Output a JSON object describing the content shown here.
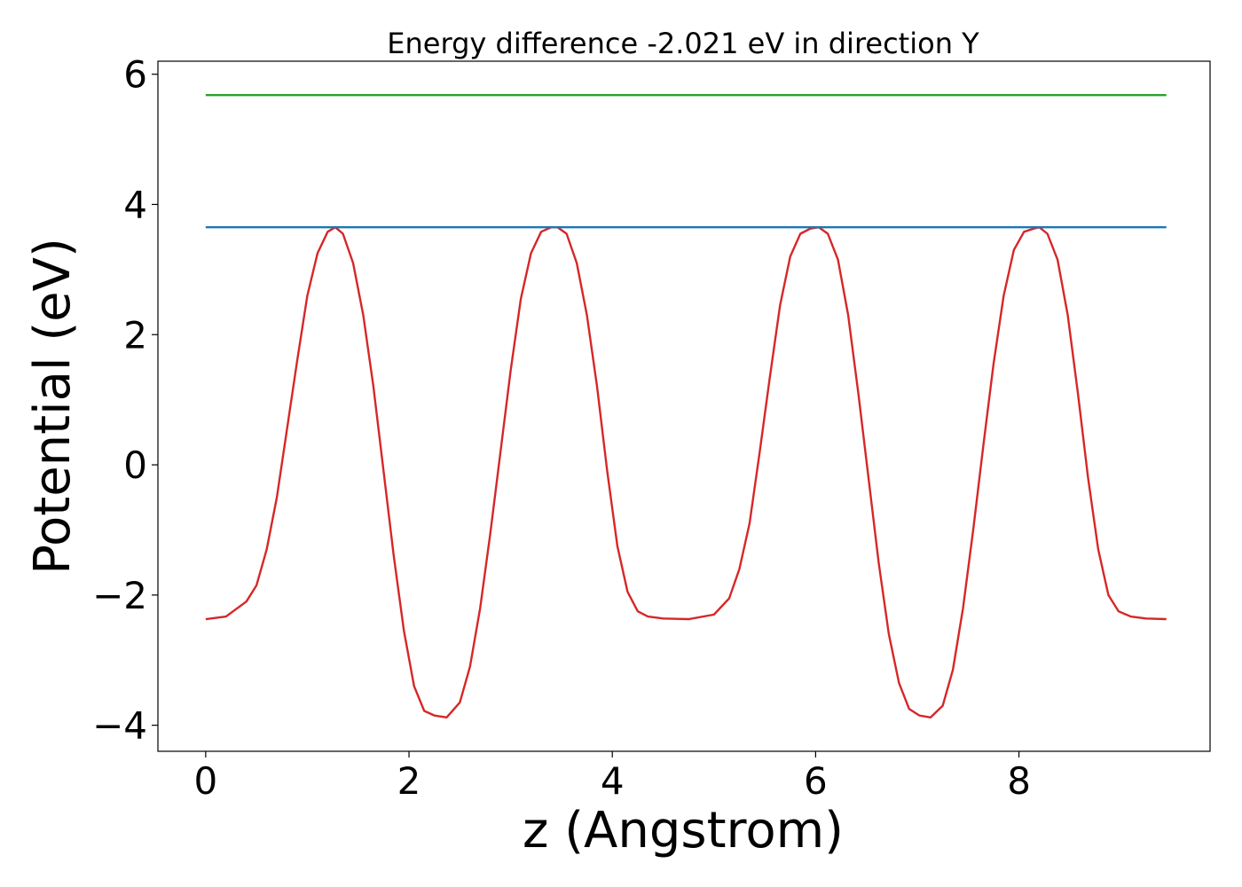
{
  "chart_data": {
    "type": "line",
    "title": "Energy difference -2.021 eV in direction Y",
    "xlabel": "z (Angstrom)",
    "ylabel": "Potential (eV)",
    "xlim": [
      -0.47,
      9.88
    ],
    "ylim": [
      -4.4,
      6.2
    ],
    "xticks": [
      0,
      2,
      4,
      6,
      8
    ],
    "yticks": [
      -4,
      -2,
      0,
      2,
      4,
      6
    ],
    "xtick_labels": [
      "0",
      "2",
      "4",
      "6",
      "8"
    ],
    "ytick_labels": [
      "−4",
      "−2",
      "0",
      "2",
      "4",
      "6"
    ],
    "grid": false,
    "series": [
      {
        "color": "#d62728",
        "x": [
          0.0,
          0.2,
          0.4,
          0.5,
          0.6,
          0.7,
          0.8,
          0.9,
          1.0,
          1.1,
          1.2,
          1.275,
          1.35,
          1.45,
          1.55,
          1.65,
          1.75,
          1.85,
          1.95,
          2.05,
          2.15,
          2.25,
          2.37,
          2.5,
          2.6,
          2.7,
          2.8,
          2.9,
          3.0,
          3.1,
          3.2,
          3.3,
          3.4,
          3.46,
          3.55,
          3.65,
          3.75,
          3.85,
          3.95,
          4.05,
          4.15,
          4.25,
          4.35,
          4.5,
          4.75,
          5.0,
          5.15,
          5.25,
          5.35,
          5.45,
          5.55,
          5.65,
          5.75,
          5.85,
          5.95,
          6.03,
          6.12,
          6.22,
          6.32,
          6.42,
          6.52,
          6.62,
          6.72,
          6.82,
          6.92,
          7.02,
          7.13,
          7.25,
          7.35,
          7.45,
          7.55,
          7.65,
          7.75,
          7.85,
          7.95,
          8.05,
          8.15,
          8.2,
          8.28,
          8.38,
          8.48,
          8.58,
          8.68,
          8.78,
          8.88,
          8.98,
          9.1,
          9.25,
          9.45
        ],
        "values": [
          -2.37,
          -2.33,
          -2.1,
          -1.85,
          -1.3,
          -0.5,
          0.55,
          1.6,
          2.6,
          3.25,
          3.58,
          3.65,
          3.55,
          3.1,
          2.3,
          1.2,
          -0.1,
          -1.4,
          -2.55,
          -3.4,
          -3.78,
          -3.85,
          -3.88,
          -3.65,
          -3.1,
          -2.2,
          -1.05,
          0.2,
          1.45,
          2.55,
          3.25,
          3.58,
          3.65,
          3.65,
          3.55,
          3.1,
          2.3,
          1.2,
          -0.1,
          -1.25,
          -1.95,
          -2.25,
          -2.33,
          -2.36,
          -2.37,
          -2.3,
          -2.05,
          -1.6,
          -0.9,
          0.2,
          1.35,
          2.45,
          3.2,
          3.55,
          3.63,
          3.65,
          3.55,
          3.15,
          2.3,
          1.1,
          -0.2,
          -1.5,
          -2.6,
          -3.35,
          -3.75,
          -3.85,
          -3.88,
          -3.7,
          -3.15,
          -2.2,
          -1.0,
          0.3,
          1.55,
          2.6,
          3.3,
          3.58,
          3.63,
          3.65,
          3.55,
          3.15,
          2.3,
          1.1,
          -0.2,
          -1.3,
          -2.0,
          -2.25,
          -2.33,
          -2.36,
          -2.37
        ]
      },
      {
        "color": "#1f77b4",
        "x": [
          0.0,
          9.45
        ],
        "values": [
          3.65,
          3.65
        ]
      },
      {
        "color": "#2ca02c",
        "x": [
          0.0,
          9.45
        ],
        "values": [
          5.68,
          5.68
        ]
      }
    ]
  }
}
